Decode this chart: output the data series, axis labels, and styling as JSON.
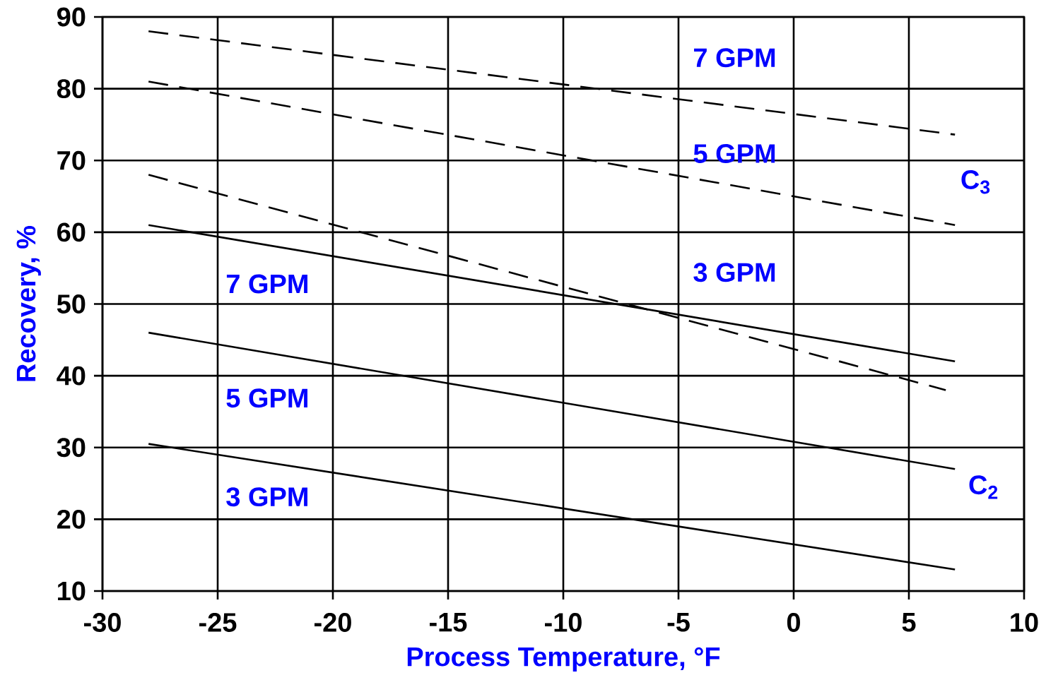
{
  "chart_data": {
    "type": "line",
    "xlabel": "Process Temperature, °F",
    "ylabel": "Recovery, %",
    "xlim": [
      -30,
      10
    ],
    "xticks": [
      -30,
      -25,
      -20,
      -15,
      -10,
      -5,
      0,
      5,
      10
    ],
    "ylim": [
      10,
      90
    ],
    "yticks": [
      10,
      20,
      30,
      40,
      50,
      60,
      70,
      80,
      90
    ],
    "grid": true,
    "marker": "none",
    "series": [
      {
        "color": "#000000",
        "line_style": "dashed",
        "x": [
          -28,
          7
        ],
        "values": [
          88,
          73.6
        ]
      },
      {
        "color": "#000000",
        "line_style": "dashed",
        "x": [
          -28,
          7
        ],
        "values": [
          81,
          61
        ]
      },
      {
        "color": "#000000",
        "line_style": "dashed",
        "x": [
          -28,
          6.6
        ],
        "values": [
          68,
          38
        ]
      },
      {
        "color": "#000000",
        "line_style": "solid",
        "x": [
          -28,
          7
        ],
        "values": [
          61,
          42
        ]
      },
      {
        "color": "#000000",
        "line_style": "solid",
        "x": [
          -28,
          7
        ],
        "values": [
          46,
          27
        ]
      },
      {
        "color": "#000000",
        "line_style": "solid",
        "x": [
          -28,
          7
        ],
        "values": [
          30.5,
          13
        ]
      }
    ],
    "annotations": [
      "7 GPM",
      "5 GPM",
      "3 GPM",
      "C$_{3}$",
      "7 GPM",
      "5 GPM",
      "3 GPM",
      "C$_{2}$"
    ]
  }
}
